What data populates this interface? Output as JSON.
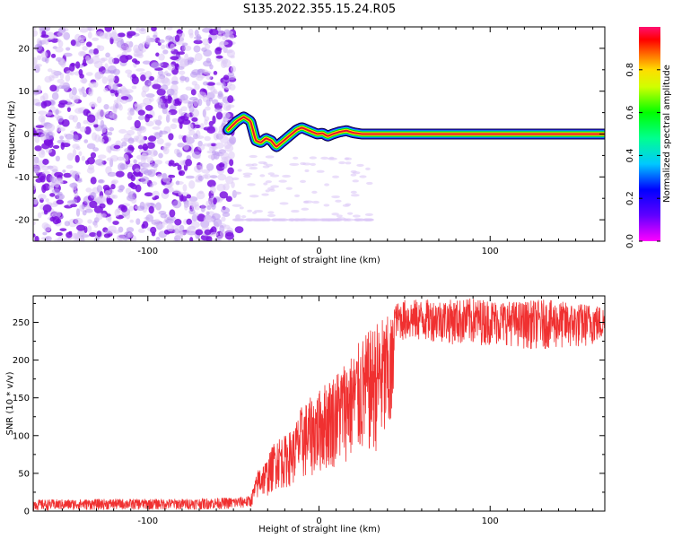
{
  "figure_title": "S135.2022.355.15.24.R05",
  "colors": {
    "snr_line": "#f03030",
    "ridge_core": "#e8102e",
    "ridge_ring": [
      "#ffdd00",
      "#00e000",
      "#00d0e0",
      "#2020ff",
      "#000040"
    ],
    "noise_dark": "#7a10e0",
    "noise_light": "#dcc8f6"
  },
  "chart_data": [
    {
      "type": "heatmap",
      "xlabel": "Height of straight line (km)",
      "ylabel": "Frequency (Hz)",
      "xlim": [
        -167,
        167
      ],
      "ylim": [
        -25,
        25
      ],
      "xticks": [
        -100,
        0,
        100
      ],
      "yticks": [
        -20,
        -10,
        0,
        10,
        20
      ],
      "grid": false,
      "colorbar": {
        "label": "Normalized spectral amplitude",
        "range": [
          0.0,
          1.0
        ],
        "ticks": [
          0.0,
          0.2,
          0.4,
          0.6,
          0.8
        ],
        "tick_labels": [
          "0.0",
          "0.2",
          "0.4",
          "0.6",
          "0.8"
        ],
        "colormap": "rainbow (magenta at 0, red at ~0.9, pink at 1)",
        "position": "right"
      },
      "noise_region_x": [
        -167,
        -50
      ],
      "ridge_path": {
        "x": [
          -53,
          -48,
          -44,
          -40,
          -37,
          -34,
          -31,
          -28,
          -25,
          -22,
          -19,
          -16,
          -13,
          -10,
          -7,
          -4,
          -1,
          2,
          5,
          8,
          12,
          16,
          20,
          25,
          30,
          167
        ],
        "y": [
          1.0,
          3.0,
          4.0,
          3.0,
          -1.5,
          -2.0,
          -1.0,
          -1.5,
          -3.0,
          -2.0,
          -1.0,
          0.0,
          1.0,
          1.5,
          1.0,
          0.5,
          0.0,
          0.2,
          -0.5,
          0.0,
          0.5,
          0.8,
          0.3,
          0.0,
          0.0,
          0.0
        ]
      },
      "ridge_peak_amplitude": 0.9
    },
    {
      "type": "line",
      "xlabel": "Height of straight line (km)",
      "ylabel": "SNR (10 * v/v)",
      "xlim": [
        -167,
        167
      ],
      "ylim": [
        0,
        285
      ],
      "xticks": [
        -100,
        0,
        100
      ],
      "yticks": [
        0,
        50,
        100,
        150,
        200,
        250
      ],
      "grid": false,
      "series": [
        {
          "x": [
            -167,
            -120,
            -80,
            -50,
            -40,
            -35,
            -30,
            -25,
            -20,
            -15,
            -10,
            -5,
            0,
            5,
            10,
            15,
            20,
            25,
            30,
            35,
            40,
            43,
            44,
            45,
            50,
            60,
            70,
            80,
            90,
            100,
            110,
            120,
            130,
            140,
            150,
            160,
            167
          ],
          "min": [
            1,
            2,
            2,
            3,
            5,
            18,
            20,
            30,
            30,
            35,
            40,
            45,
            50,
            55,
            58,
            65,
            68,
            72,
            75,
            80,
            82,
            85,
            230,
            230,
            225,
            225,
            225,
            220,
            220,
            220,
            220,
            215,
            215,
            215,
            215,
            220,
            225
          ],
          "max": [
            15,
            16,
            16,
            18,
            20,
            60,
            70,
            100,
            100,
            110,
            140,
            150,
            160,
            175,
            185,
            200,
            210,
            230,
            240,
            255,
            258,
            260,
            275,
            275,
            280,
            280,
            280,
            280,
            282,
            280,
            278,
            278,
            280,
            278,
            275,
            275,
            270
          ]
        }
      ]
    }
  ]
}
